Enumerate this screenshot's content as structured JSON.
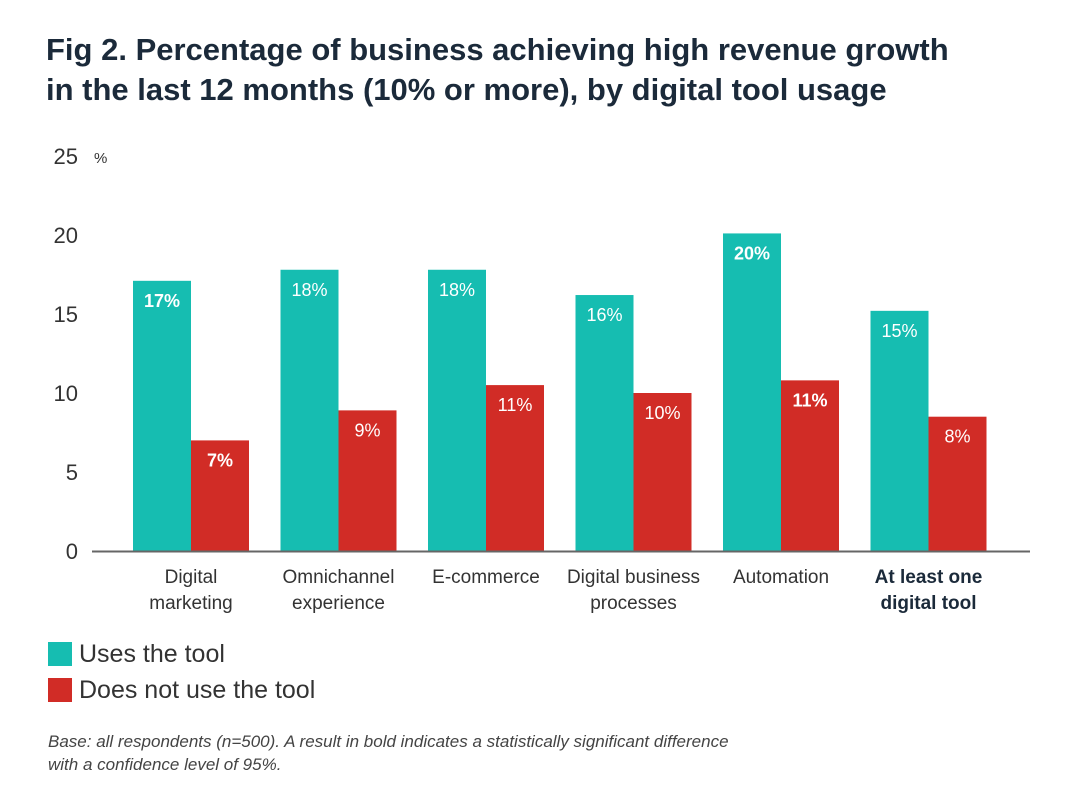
{
  "title": {
    "line1": "Fig 2. Percentage of business achieving high revenue growth",
    "line2": "in the last 12 months (10% or more), by digital tool usage"
  },
  "colors": {
    "uses": "#16bdb1",
    "not_uses": "#d12c26",
    "axis": "#666666"
  },
  "legend": [
    {
      "label": "Uses the tool",
      "color": "#16bdb1"
    },
    {
      "label": "Does not use the tool",
      "color": "#d12c26"
    }
  ],
  "footnote": {
    "line1": "Base: all respondents (n=500). A result in bold indicates a statistically significant difference",
    "line2": "with a confidence level of 95%."
  },
  "chart_data": {
    "type": "bar",
    "ylim": [
      0,
      25
    ],
    "yticks": [
      "0",
      "5",
      "10",
      "15",
      "20",
      "25"
    ],
    "y_unit": "%",
    "grid": false,
    "legend_position": "bottom-left",
    "categories": [
      {
        "lines": [
          "Digital",
          "marketing"
        ],
        "bold": false
      },
      {
        "lines": [
          "Omnichannel",
          "experience"
        ],
        "bold": false
      },
      {
        "lines": [
          "E-commerce"
        ],
        "bold": false
      },
      {
        "lines": [
          "Digital business",
          "processes"
        ],
        "bold": false
      },
      {
        "lines": [
          "Automation"
        ],
        "bold": false
      },
      {
        "lines": [
          "At least one",
          "digital tool"
        ],
        "bold": true
      }
    ],
    "series": [
      {
        "name": "Uses the tool",
        "color": "#16bdb1",
        "values": [
          17.1,
          17.8,
          17.8,
          16.2,
          20.1,
          15.2
        ],
        "labels": [
          "17%",
          "18%",
          "18%",
          "16%",
          "20%",
          "15%"
        ],
        "bold": [
          true,
          false,
          false,
          false,
          true,
          false
        ]
      },
      {
        "name": "Does not use the tool",
        "color": "#d12c26",
        "values": [
          7.0,
          8.9,
          10.5,
          10.0,
          10.8,
          8.5
        ],
        "labels": [
          "7%",
          "9%",
          "11%",
          "10%",
          "11%",
          "8%"
        ],
        "bold": [
          true,
          false,
          false,
          false,
          true,
          false
        ]
      }
    ]
  }
}
